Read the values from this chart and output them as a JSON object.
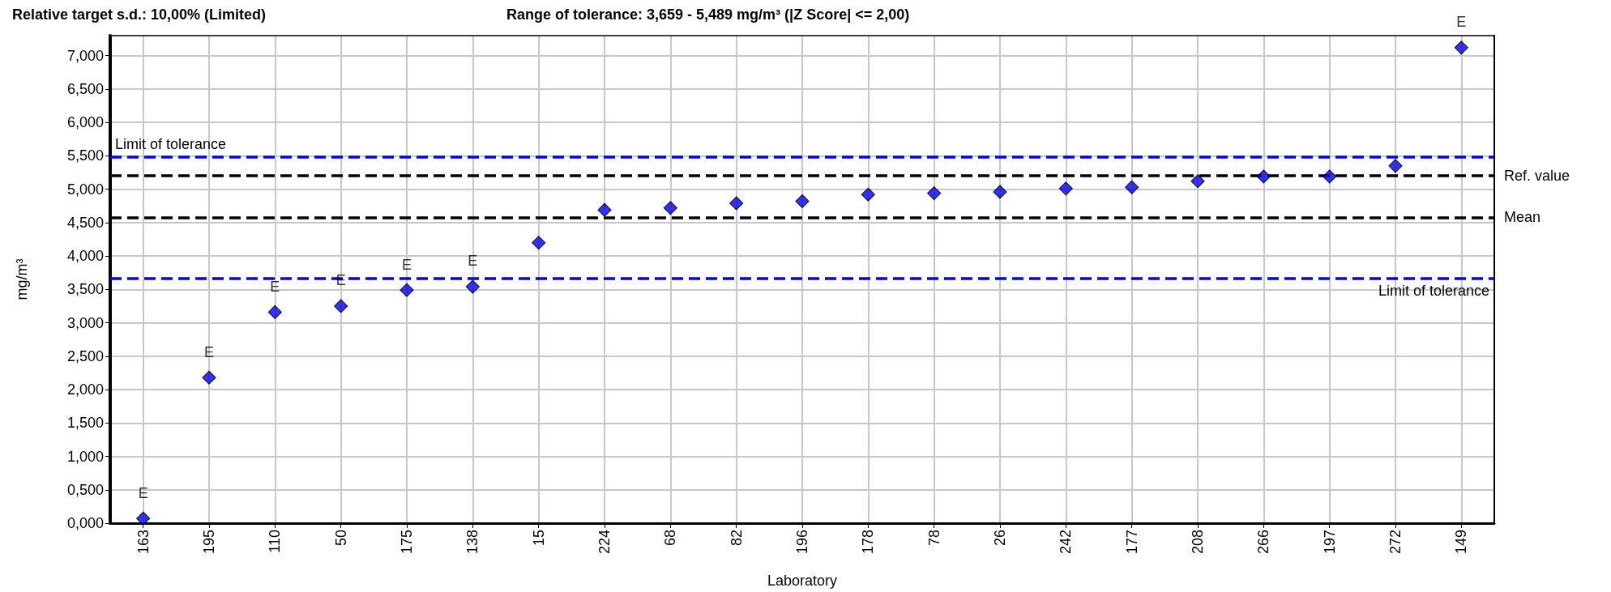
{
  "chart_data": {
    "type": "scatter",
    "annotations": [
      "Relative target s.d.: 10,00% (Limited)",
      "Range of tolerance: 3,659 - 5,489 mg/m³ (|Z Score| <= 2,00)"
    ],
    "xlabel": "Laboratory",
    "ylabel": "mg/m³",
    "categories": [
      "163",
      "195",
      "110",
      "50",
      "175",
      "138",
      "15",
      "224",
      "68",
      "82",
      "196",
      "178",
      "78",
      "26",
      "242",
      "177",
      "208",
      "266",
      "197",
      "272",
      "149"
    ],
    "series": [
      {
        "color": "#0000ff",
        "values": [
          0.07,
          2.18,
          3.16,
          3.25,
          3.49,
          3.54,
          4.2,
          4.69,
          4.72,
          4.79,
          4.82,
          4.92,
          4.94,
          4.96,
          5.01,
          5.03,
          5.12,
          5.19,
          5.19,
          5.35,
          7.12
        ],
        "value_labels": [
          "E",
          "E",
          "E",
          "E",
          "E",
          "E",
          null,
          null,
          null,
          null,
          null,
          null,
          null,
          null,
          null,
          null,
          null,
          null,
          null,
          null,
          "E"
        ]
      }
    ],
    "marker": "diamond",
    "ylim": [
      0,
      7.3
    ],
    "yticks": [
      {
        "value": 0,
        "label": "0,000"
      },
      {
        "value": 0.5,
        "label": "0,500"
      },
      {
        "value": 1,
        "label": "1,000"
      },
      {
        "value": 1.5,
        "label": "1,500"
      },
      {
        "value": 2,
        "label": "2,000"
      },
      {
        "value": 2.5,
        "label": "2,500"
      },
      {
        "value": 3,
        "label": "3,000"
      },
      {
        "value": 3.5,
        "label": "3,500"
      },
      {
        "value": 4,
        "label": "4,000"
      },
      {
        "value": 4.5,
        "label": "4,500"
      },
      {
        "value": 5,
        "label": "5,000"
      },
      {
        "value": 5.5,
        "label": "5,500"
      },
      {
        "value": 6,
        "label": "6,000"
      },
      {
        "value": 6.5,
        "label": "6,500"
      },
      {
        "value": 7,
        "label": "7,000"
      }
    ],
    "grid": true,
    "ref_lines": [
      {
        "axis": "y",
        "value": 5.489,
        "label": "Limit of tolerance",
        "color": "#0000ff",
        "line_style": "dashed"
      },
      {
        "axis": "y",
        "value": 5.2,
        "label": "Ref. value",
        "color": "#000000",
        "line_style": "dashed"
      },
      {
        "axis": "y",
        "value": 4.58,
        "label": "Mean",
        "color": "#000000",
        "line_style": "dashed"
      },
      {
        "axis": "y",
        "value": 3.659,
        "label": "Limit of tolerance",
        "color": "#0000ff",
        "line_style": "dashed"
      }
    ]
  }
}
